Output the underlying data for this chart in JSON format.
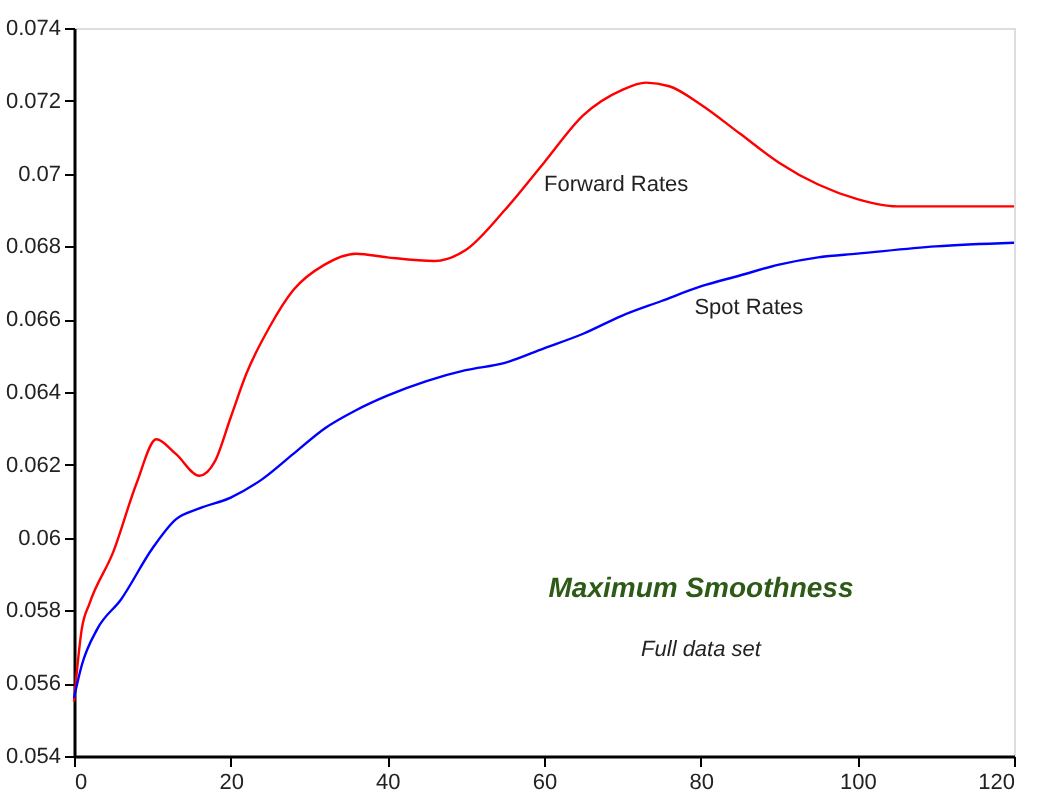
{
  "chart_data": {
    "type": "line",
    "xlim": [
      0,
      120
    ],
    "xticks": [
      0,
      20,
      40,
      60,
      80,
      100,
      120
    ],
    "ylim": [
      0.054,
      0.074
    ],
    "yticks": [
      0.054,
      0.056,
      0.058,
      0.06,
      0.062,
      0.064,
      0.066,
      0.068,
      0.07,
      0.072,
      0.074
    ],
    "grid": false,
    "legend": false,
    "marker": "none",
    "line_style": "solid",
    "series": [
      {
        "name": "Forward Rates",
        "color": "#ff0000",
        "x": [
          0,
          1,
          2,
          5,
          8,
          10.5,
          13,
          16,
          18,
          20,
          22,
          25,
          28,
          32,
          36,
          40,
          46,
          50,
          55,
          60,
          65,
          70,
          73,
          76,
          80,
          85,
          90,
          95,
          100,
          105,
          110,
          120
        ],
        "values": [
          0.0555,
          0.0575,
          0.0582,
          0.0596,
          0.0615,
          0.0627,
          0.0623,
          0.0617,
          0.0621,
          0.0633,
          0.0645,
          0.0658,
          0.0668,
          0.0675,
          0.0678,
          0.0677,
          0.0676,
          0.0679,
          0.069,
          0.0703,
          0.0716,
          0.0723,
          0.0725,
          0.0724,
          0.0719,
          0.0711,
          0.0703,
          0.0697,
          0.0693,
          0.0691,
          0.0691,
          0.0691
        ]
      },
      {
        "name": "Spot Rates",
        "color": "#0000ff",
        "x": [
          0,
          1,
          3,
          6,
          10,
          13,
          16,
          20,
          24,
          28,
          32,
          36,
          40,
          45,
          50,
          55,
          60,
          65,
          70,
          75,
          80,
          85,
          90,
          95,
          100,
          110,
          120
        ],
        "values": [
          0.0556,
          0.0565,
          0.0575,
          0.0583,
          0.0597,
          0.0605,
          0.0608,
          0.0611,
          0.0616,
          0.0623,
          0.063,
          0.0635,
          0.0639,
          0.0643,
          0.0646,
          0.0648,
          0.0652,
          0.0656,
          0.0661,
          0.0665,
          0.0669,
          0.0672,
          0.0675,
          0.0677,
          0.0678,
          0.068,
          0.0681
        ]
      }
    ],
    "annotations": [
      "Maximum Smoothness",
      "Full data set"
    ]
  }
}
